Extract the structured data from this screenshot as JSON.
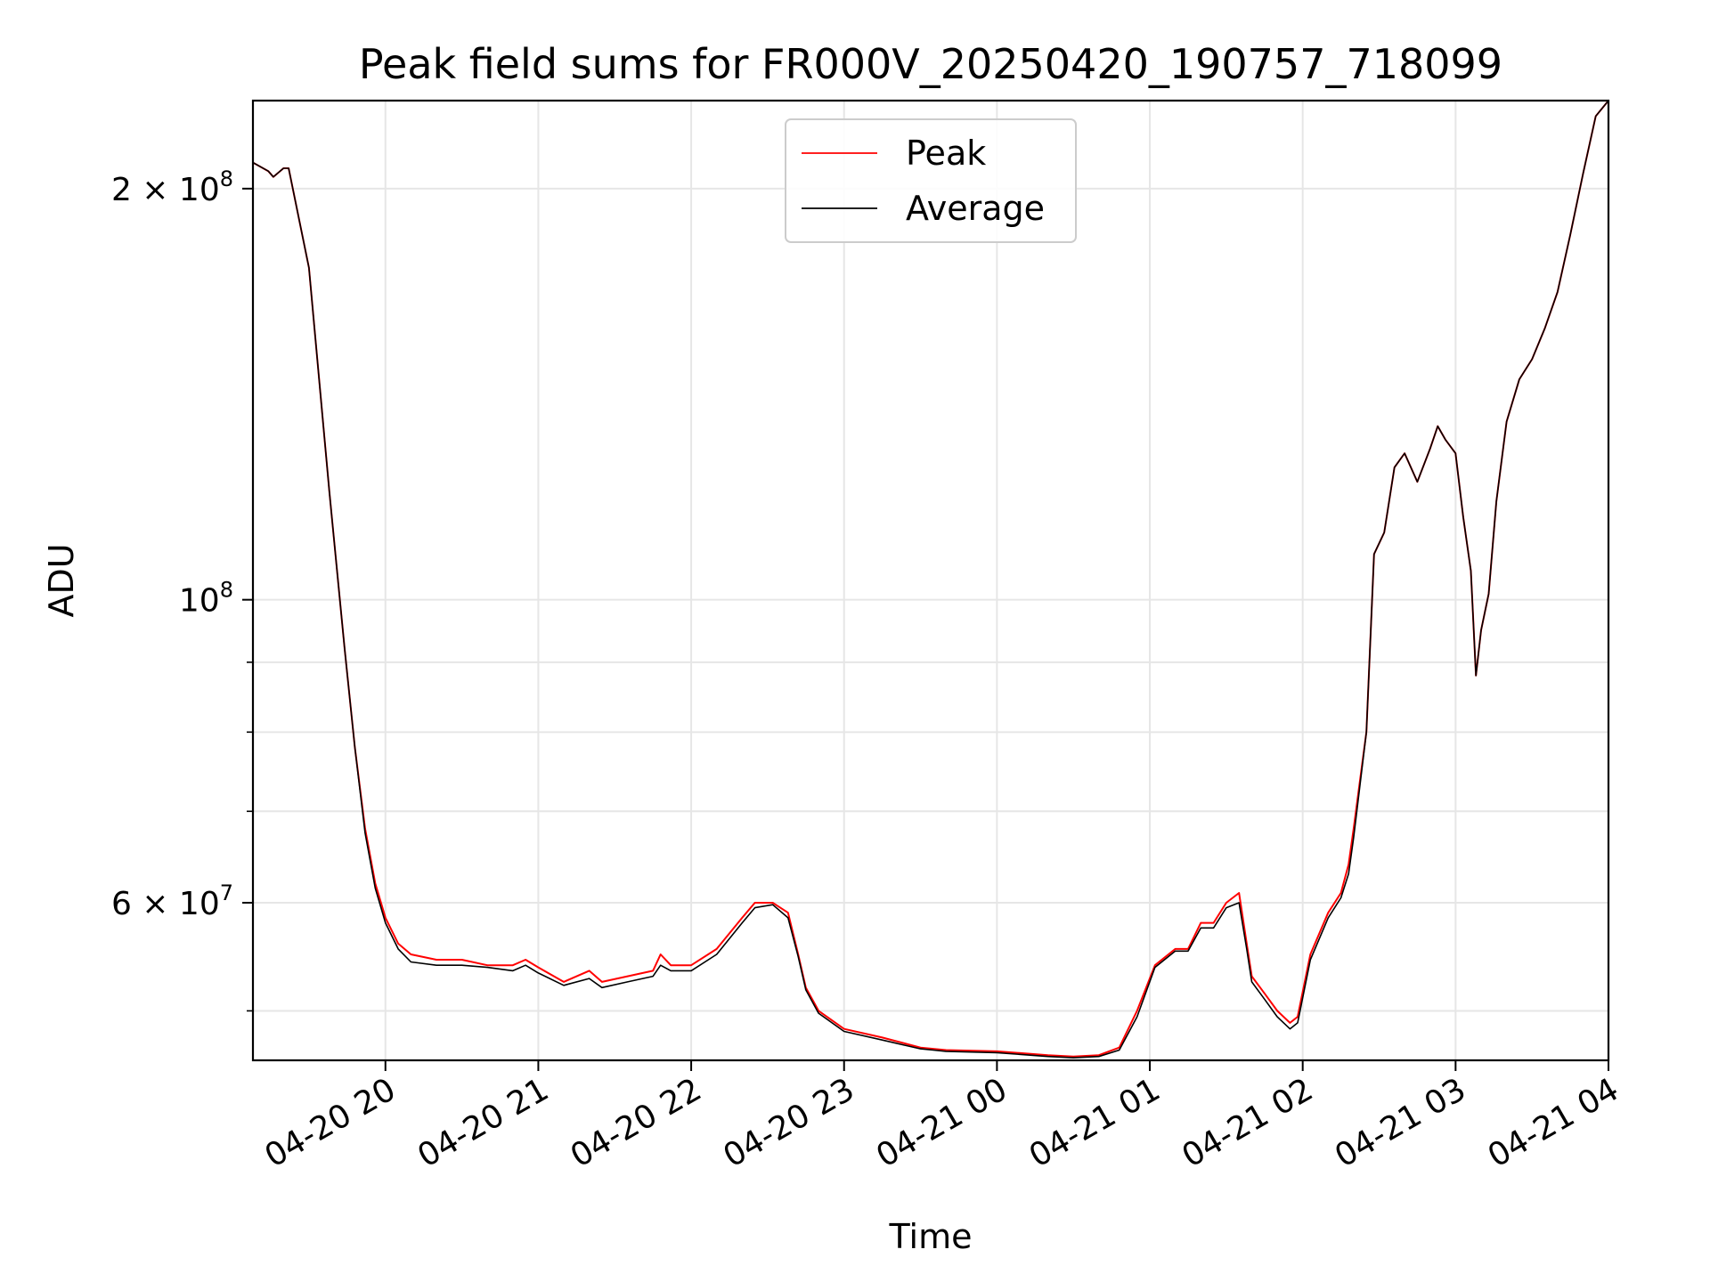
{
  "chart_data": {
    "type": "line",
    "title": "Peak field sums for FR000V_20250420_190757_718099",
    "xlabel": "Time",
    "ylabel": "ADU",
    "yscale": "log",
    "xlim": [
      "2025-04-20 19:08",
      "2025-04-21 04:00"
    ],
    "ylim": [
      46000000,
      232000000
    ],
    "grid": true,
    "legend_position": "upper-center",
    "x_ticks": [
      {
        "value": "2025-04-20 20:00",
        "label": "04-20 20"
      },
      {
        "value": "2025-04-20 21:00",
        "label": "04-20 21"
      },
      {
        "value": "2025-04-20 22:00",
        "label": "04-20 22"
      },
      {
        "value": "2025-04-20 23:00",
        "label": "04-20 23"
      },
      {
        "value": "2025-04-21 00:00",
        "label": "04-21 00"
      },
      {
        "value": "2025-04-21 01:00",
        "label": "04-21 01"
      },
      {
        "value": "2025-04-21 02:00",
        "label": "04-21 02"
      },
      {
        "value": "2025-04-21 03:00",
        "label": "04-21 03"
      },
      {
        "value": "2025-04-21 04:00",
        "label": "04-21 04"
      }
    ],
    "y_ticks": [
      {
        "value": 60000000,
        "base": "6",
        "exponent": "7"
      },
      {
        "value": 100000000,
        "base": "",
        "exponent": "8"
      },
      {
        "value": 200000000,
        "base": "2",
        "exponent": "8"
      }
    ],
    "y_minor_ticks": [
      50000000,
      70000000,
      80000000,
      90000000
    ],
    "series": [
      {
        "name": "Peak",
        "color": "#ff0000",
        "x": [
          "2025-04-20 19:08",
          "2025-04-20 19:14",
          "2025-04-20 19:16",
          "2025-04-20 19:20",
          "2025-04-20 19:22",
          "2025-04-20 19:30",
          "2025-04-20 19:38",
          "2025-04-20 19:44",
          "2025-04-20 19:48",
          "2025-04-20 19:52",
          "2025-04-20 19:56",
          "2025-04-20 20:00",
          "2025-04-20 20:05",
          "2025-04-20 20:10",
          "2025-04-20 20:20",
          "2025-04-20 20:30",
          "2025-04-20 20:40",
          "2025-04-20 20:50",
          "2025-04-20 20:55",
          "2025-04-20 21:00",
          "2025-04-20 21:10",
          "2025-04-20 21:20",
          "2025-04-20 21:25",
          "2025-04-20 21:35",
          "2025-04-20 21:45",
          "2025-04-20 21:48",
          "2025-04-20 21:52",
          "2025-04-20 22:00",
          "2025-04-20 22:10",
          "2025-04-20 22:20",
          "2025-04-20 22:25",
          "2025-04-20 22:32",
          "2025-04-20 22:38",
          "2025-04-20 22:42",
          "2025-04-20 22:45",
          "2025-04-20 22:50",
          "2025-04-20 23:00",
          "2025-04-20 23:15",
          "2025-04-20 23:30",
          "2025-04-20 23:35",
          "2025-04-20 23:40",
          "2025-04-21 00:00",
          "2025-04-21 00:20",
          "2025-04-21 00:30",
          "2025-04-21 00:40",
          "2025-04-21 00:48",
          "2025-04-21 00:55",
          "2025-04-21 01:02",
          "2025-04-21 01:10",
          "2025-04-21 01:15",
          "2025-04-21 01:20",
          "2025-04-21 01:25",
          "2025-04-21 01:30",
          "2025-04-21 01:35",
          "2025-04-21 01:38",
          "2025-04-21 01:40",
          "2025-04-21 01:45",
          "2025-04-21 01:50",
          "2025-04-21 01:55",
          "2025-04-21 01:58",
          "2025-04-21 02:03",
          "2025-04-21 02:10",
          "2025-04-21 02:15",
          "2025-04-21 02:18",
          "2025-04-21 02:20",
          "2025-04-21 02:25",
          "2025-04-21 02:28",
          "2025-04-21 02:32",
          "2025-04-21 02:36",
          "2025-04-21 02:40",
          "2025-04-21 02:45",
          "2025-04-21 02:50",
          "2025-04-21 02:53",
          "2025-04-21 02:56",
          "2025-04-21 03:00",
          "2025-04-21 03:03",
          "2025-04-21 03:06",
          "2025-04-21 03:08",
          "2025-04-21 03:10",
          "2025-04-21 03:13",
          "2025-04-21 03:16",
          "2025-04-21 03:20",
          "2025-04-21 03:25",
          "2025-04-21 03:30",
          "2025-04-21 03:35",
          "2025-04-21 03:40",
          "2025-04-21 03:45",
          "2025-04-21 03:50",
          "2025-04-21 03:55",
          "2025-04-21 04:00"
        ],
        "y": [
          209000000,
          206000000,
          204000000,
          207000000,
          207000000,
          175000000,
          120000000,
          92000000,
          78000000,
          68000000,
          62000000,
          58500000,
          56000000,
          55000000,
          54500000,
          54500000,
          54000000,
          54000000,
          54500000,
          53800000,
          52500000,
          53500000,
          52500000,
          53000000,
          53500000,
          55000000,
          54000000,
          54000000,
          55500000,
          58500000,
          60000000,
          60000000,
          59000000,
          55000000,
          52000000,
          50000000,
          48500000,
          47800000,
          47000000,
          46900000,
          46800000,
          46700000,
          46400000,
          46300000,
          46400000,
          47000000,
          50000000,
          54000000,
          55500000,
          55500000,
          58000000,
          58000000,
          60000000,
          61000000,
          56000000,
          53000000,
          51500000,
          50000000,
          49000000,
          49500000,
          55000000,
          59000000,
          61000000,
          64000000,
          68000000,
          80000000,
          108000000,
          112000000,
          125000000,
          128000000,
          122000000,
          129000000,
          134000000,
          131000000,
          128000000,
          115000000,
          105000000,
          88000000,
          95000000,
          101000000,
          118000000,
          135000000,
          145000000,
          150000000,
          158000000,
          168000000,
          185000000,
          205000000,
          226000000,
          232000000
        ]
      },
      {
        "name": "Average",
        "color": "#000000",
        "x": [
          "2025-04-20 19:08",
          "2025-04-20 19:14",
          "2025-04-20 19:16",
          "2025-04-20 19:20",
          "2025-04-20 19:22",
          "2025-04-20 19:30",
          "2025-04-20 19:38",
          "2025-04-20 19:44",
          "2025-04-20 19:48",
          "2025-04-20 19:52",
          "2025-04-20 19:56",
          "2025-04-20 20:00",
          "2025-04-20 20:05",
          "2025-04-20 20:10",
          "2025-04-20 20:20",
          "2025-04-20 20:30",
          "2025-04-20 20:40",
          "2025-04-20 20:50",
          "2025-04-20 20:55",
          "2025-04-20 21:00",
          "2025-04-20 21:10",
          "2025-04-20 21:20",
          "2025-04-20 21:25",
          "2025-04-20 21:35",
          "2025-04-20 21:45",
          "2025-04-20 21:48",
          "2025-04-20 21:52",
          "2025-04-20 22:00",
          "2025-04-20 22:10",
          "2025-04-20 22:20",
          "2025-04-20 22:25",
          "2025-04-20 22:32",
          "2025-04-20 22:38",
          "2025-04-20 22:42",
          "2025-04-20 22:45",
          "2025-04-20 22:50",
          "2025-04-20 23:00",
          "2025-04-20 23:15",
          "2025-04-20 23:30",
          "2025-04-20 23:35",
          "2025-04-20 23:40",
          "2025-04-21 00:00",
          "2025-04-21 00:20",
          "2025-04-21 00:30",
          "2025-04-21 00:40",
          "2025-04-21 00:48",
          "2025-04-21 00:55",
          "2025-04-21 01:02",
          "2025-04-21 01:10",
          "2025-04-21 01:15",
          "2025-04-21 01:20",
          "2025-04-21 01:25",
          "2025-04-21 01:30",
          "2025-04-21 01:35",
          "2025-04-21 01:38",
          "2025-04-21 01:40",
          "2025-04-21 01:45",
          "2025-04-21 01:50",
          "2025-04-21 01:55",
          "2025-04-21 01:58",
          "2025-04-21 02:03",
          "2025-04-21 02:10",
          "2025-04-21 02:15",
          "2025-04-21 02:18",
          "2025-04-21 02:20",
          "2025-04-21 02:25",
          "2025-04-21 02:28",
          "2025-04-21 02:32",
          "2025-04-21 02:36",
          "2025-04-21 02:40",
          "2025-04-21 02:45",
          "2025-04-21 02:50",
          "2025-04-21 02:53",
          "2025-04-21 02:56",
          "2025-04-21 03:00",
          "2025-04-21 03:03",
          "2025-04-21 03:06",
          "2025-04-21 03:08",
          "2025-04-21 03:10",
          "2025-04-21 03:13",
          "2025-04-21 03:16",
          "2025-04-21 03:20",
          "2025-04-21 03:25",
          "2025-04-21 03:30",
          "2025-04-21 03:35",
          "2025-04-21 03:40",
          "2025-04-21 03:45",
          "2025-04-21 03:50",
          "2025-04-21 03:55",
          "2025-04-21 04:00"
        ],
        "y": [
          209000000,
          206000000,
          204000000,
          207000000,
          207000000,
          175000000,
          120000000,
          92000000,
          78000000,
          67500000,
          61500000,
          58000000,
          55500000,
          54300000,
          54000000,
          54000000,
          53800000,
          53500000,
          54000000,
          53300000,
          52200000,
          52800000,
          52000000,
          52500000,
          53000000,
          54000000,
          53500000,
          53500000,
          55000000,
          58000000,
          59500000,
          59800000,
          58500000,
          54800000,
          51800000,
          49800000,
          48300000,
          47600000,
          46900000,
          46800000,
          46700000,
          46600000,
          46300000,
          46200000,
          46300000,
          46800000,
          49500000,
          53800000,
          55300000,
          55300000,
          57500000,
          57500000,
          59500000,
          60000000,
          55500000,
          52500000,
          51000000,
          49500000,
          48500000,
          49000000,
          54500000,
          58500000,
          60500000,
          63000000,
          67000000,
          80000000,
          108000000,
          112000000,
          125000000,
          128000000,
          122000000,
          129000000,
          134000000,
          131000000,
          128000000,
          115000000,
          105000000,
          88000000,
          95000000,
          101000000,
          118000000,
          135000000,
          145000000,
          150000000,
          158000000,
          168000000,
          185000000,
          205000000,
          226000000,
          232000000
        ]
      }
    ]
  }
}
